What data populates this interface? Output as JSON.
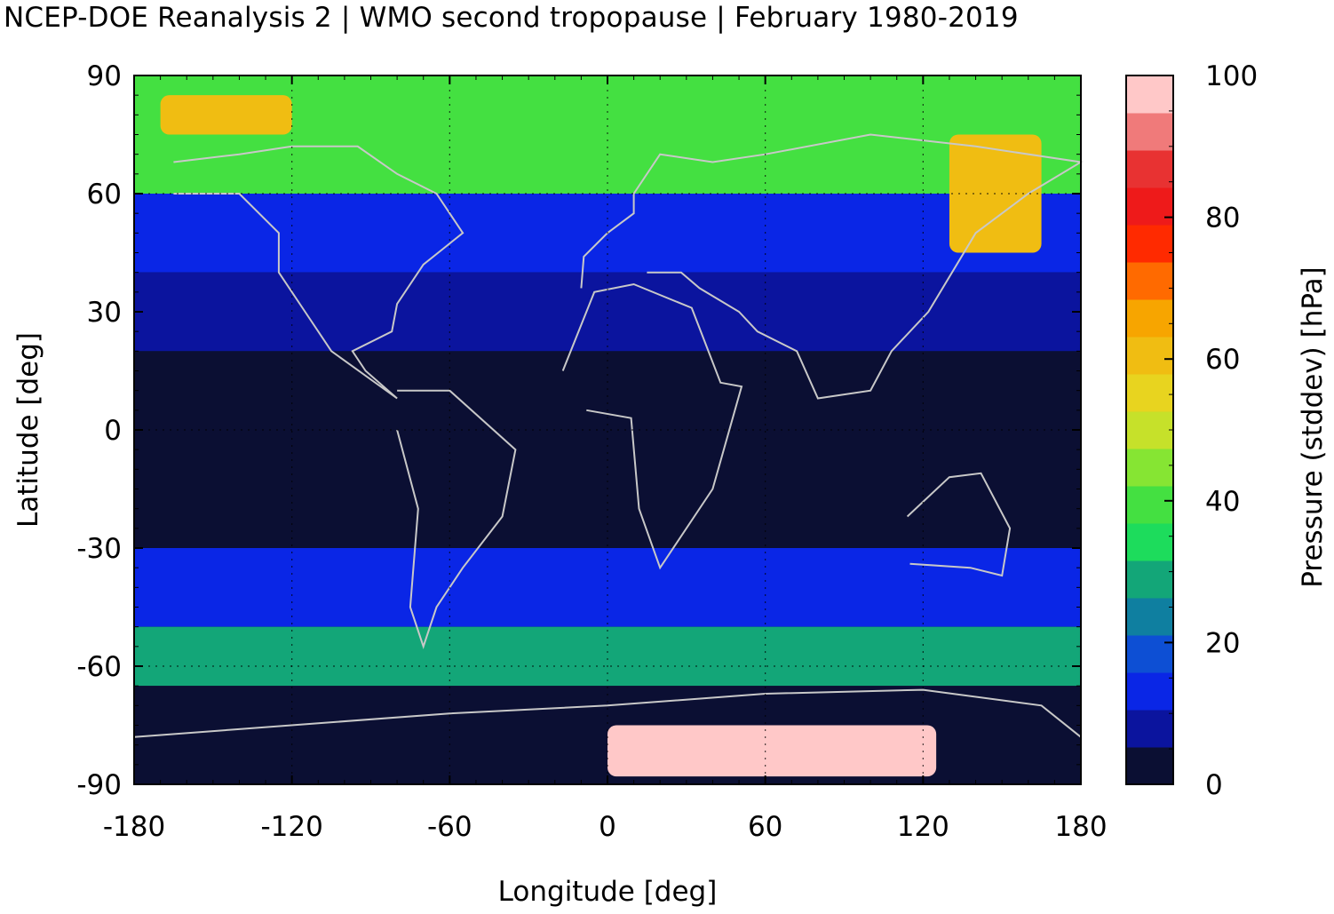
{
  "chart_data": {
    "type": "heatmap",
    "title": "NCEP-DOE Reanalysis 2 | WMO second tropopause | February 1980-2019",
    "xlabel": "Longitude [deg]",
    "ylabel": "Latitude [deg]",
    "xlim": [
      -180,
      180
    ],
    "ylim": [
      -90,
      90
    ],
    "xticks": [
      "-180",
      "-120",
      "-60",
      "0",
      "60",
      "120",
      "180"
    ],
    "yticks": [
      "90",
      "60",
      "30",
      "0",
      "-30",
      "-60",
      "-90"
    ],
    "grid": "dotted",
    "overlay": "coastlines",
    "colorbar": {
      "label": "Pressure (stddev) [hPa]",
      "range": [
        0,
        100
      ],
      "ticks": [
        "0",
        "20",
        "40",
        "60",
        "80",
        "100"
      ],
      "colors": [
        "#0b0f33",
        "#0b149e",
        "#0a26e6",
        "#0d4fd4",
        "#0f7fa0",
        "#13a678",
        "#1ddc5c",
        "#44e041",
        "#86e533",
        "#c6e12a",
        "#e8d41f",
        "#f0bd12",
        "#f7a500",
        "#ff6a00",
        "#ff2a00",
        "#ee1a1a",
        "#e83232",
        "#f07a7a",
        "#ffc8c8"
      ]
    },
    "bands": [
      {
        "lat": [
          60,
          90
        ],
        "value": 38
      },
      {
        "lat": [
          40,
          60
        ],
        "value": 12
      },
      {
        "lat": [
          20,
          40
        ],
        "value": 8
      },
      {
        "lat": [
          -30,
          20
        ],
        "value": 3
      },
      {
        "lat": [
          -50,
          -30
        ],
        "value": 12
      },
      {
        "lat": [
          -65,
          -50
        ],
        "value": 28
      },
      {
        "lat": [
          -90,
          -65
        ],
        "value": 3
      }
    ],
    "hotspots": [
      {
        "lon": [
          130,
          165
        ],
        "lat": [
          45,
          75
        ],
        "value": 60
      },
      {
        "lon": [
          0,
          125
        ],
        "lat": [
          -88,
          -75
        ],
        "value": 98
      },
      {
        "lon": [
          -170,
          -120
        ],
        "lat": [
          75,
          85
        ],
        "value": 58
      }
    ]
  }
}
